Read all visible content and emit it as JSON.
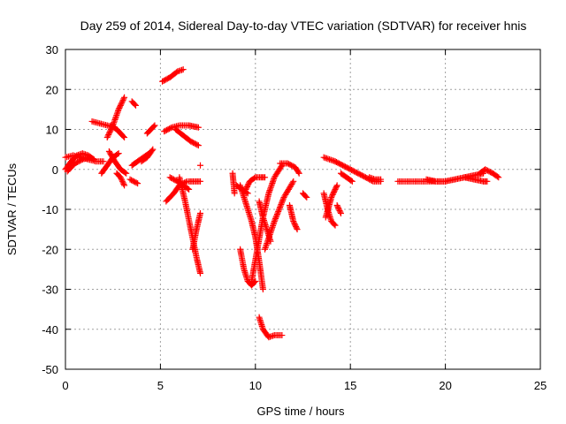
{
  "chart_data": {
    "type": "scatter",
    "title": "Day 259 of 2014, Sidereal Day-to-day VTEC variation (SDTVAR) for receiver hnis",
    "xlabel": "GPS time / hours",
    "ylabel": "SDTVAR / TECUs",
    "xlim": [
      0,
      25
    ],
    "ylim": [
      -50,
      30
    ],
    "xticks": [
      0,
      5,
      10,
      15,
      20,
      25
    ],
    "yticks": [
      -50,
      -40,
      -30,
      -20,
      -10,
      0,
      10,
      20,
      30
    ],
    "grid": true,
    "marker": "+",
    "color": "#ff0000",
    "segments": [
      {
        "x": [
          0.0,
          0.3,
          0.6,
          0.9,
          1.2,
          1.5
        ],
        "y": [
          0,
          2,
          3.5,
          4,
          3.5,
          2.5
        ]
      },
      {
        "x": [
          0.0,
          0.4,
          0.8,
          1.2,
          1.6,
          2.0
        ],
        "y": [
          3,
          3.5,
          3,
          2.5,
          2,
          2
        ]
      },
      {
        "x": [
          0.1,
          0.5,
          0.9,
          1.3
        ],
        "y": [
          -0.5,
          1.5,
          2.5,
          3
        ]
      },
      {
        "x": [
          1.4,
          1.8,
          2.2,
          2.6
        ],
        "y": [
          12,
          11.5,
          11,
          10.5
        ]
      },
      {
        "x": [
          2.2,
          2.5,
          2.8,
          3.1
        ],
        "y": [
          8,
          11,
          15,
          18
        ]
      },
      {
        "x": [
          2.3,
          2.6,
          2.9,
          3.2
        ],
        "y": [
          4.5,
          2,
          0,
          -1
        ]
      },
      {
        "x": [
          1.9,
          2.2,
          2.5,
          2.8
        ],
        "y": [
          -1,
          1,
          3,
          4
        ]
      },
      {
        "x": [
          2.4,
          2.7,
          2.9,
          3.1
        ],
        "y": [
          11,
          10,
          9,
          8
        ]
      },
      {
        "x": [
          2.7,
          2.9,
          3.0,
          3.1
        ],
        "y": [
          -1,
          -2,
          -3,
          -4
        ]
      },
      {
        "x": [
          3.5,
          3.6,
          3.7
        ],
        "y": [
          17,
          16.5,
          16
        ]
      },
      {
        "x": [
          3.5,
          3.8,
          4.1,
          4.4
        ],
        "y": [
          1,
          2,
          3,
          4
        ]
      },
      {
        "x": [
          3.4,
          3.6,
          3.8
        ],
        "y": [
          -2.5,
          -3,
          -3.5
        ]
      },
      {
        "x": [
          4.0,
          4.3,
          4.6
        ],
        "y": [
          2,
          3,
          5
        ]
      },
      {
        "x": [
          4.3,
          4.5,
          4.7
        ],
        "y": [
          9,
          10,
          11
        ]
      },
      {
        "x": [
          5.1,
          5.5,
          5.9,
          6.2
        ],
        "y": [
          22,
          23,
          24.5,
          25
        ]
      },
      {
        "x": [
          5.2,
          5.6,
          6.0,
          6.5,
          7.0
        ],
        "y": [
          9.5,
          10.5,
          11,
          11,
          10.5
        ]
      },
      {
        "x": [
          5.8,
          6.2,
          6.6,
          7.0
        ],
        "y": [
          10,
          8.5,
          7,
          6
        ]
      },
      {
        "x": [
          5.3,
          5.7,
          6.0,
          6.4
        ],
        "y": [
          -8,
          -6,
          -4,
          -3
        ]
      },
      {
        "x": [
          5.5,
          5.9,
          6.2,
          6.5
        ],
        "y": [
          -2,
          -3,
          -4,
          -5
        ]
      },
      {
        "x": [
          6.0,
          6.3,
          6.6,
          6.9,
          7.1
        ],
        "y": [
          -2,
          -8,
          -15,
          -22,
          -26
        ]
      },
      {
        "x": [
          6.5,
          6.8,
          7.1
        ],
        "y": [
          -3,
          -3,
          -3
        ]
      },
      {
        "x": [
          6.7,
          6.9,
          7.1
        ],
        "y": [
          -20,
          -15,
          -11
        ]
      },
      {
        "x": [
          7.1
        ],
        "y": [
          1
        ]
      },
      {
        "x": [
          8.8,
          8.9
        ],
        "y": [
          -1,
          -6
        ]
      },
      {
        "x": [
          9.0,
          9.3,
          9.6
        ],
        "y": [
          -4,
          -5,
          -6
        ]
      },
      {
        "x": [
          9.2,
          9.4,
          9.6,
          9.8,
          10.0
        ],
        "y": [
          -20,
          -25,
          -28,
          -29,
          -28
        ]
      },
      {
        "x": [
          9.2,
          9.4,
          9.6,
          9.8,
          10.0,
          10.2,
          10.4
        ],
        "y": [
          -4,
          -7,
          -10,
          -13,
          -17,
          -23,
          -30
        ]
      },
      {
        "x": [
          9.5,
          9.7,
          10.0,
          10.3,
          10.5
        ],
        "y": [
          -5,
          -3,
          -2,
          -2,
          -2
        ]
      },
      {
        "x": [
          9.8,
          10.1,
          10.4,
          10.7,
          11.0,
          11.4
        ],
        "y": [
          -28,
          -20,
          -12,
          -6,
          -2,
          1
        ]
      },
      {
        "x": [
          10.2,
          10.4,
          10.6,
          10.8
        ],
        "y": [
          -8,
          -12,
          -15,
          -18
        ]
      },
      {
        "x": [
          10.2,
          10.4,
          10.7,
          11.0,
          11.4
        ],
        "y": [
          -37,
          -40,
          -42,
          -41.5,
          -41.5
        ]
      },
      {
        "x": [
          10.5,
          11.0,
          11.5,
          12.0
        ],
        "y": [
          -20,
          -13,
          -7,
          -3
        ]
      },
      {
        "x": [
          11.3,
          11.7,
          12.1,
          12.3
        ],
        "y": [
          1.5,
          1.5,
          0.5,
          -1
        ]
      },
      {
        "x": [
          11.8,
          12.0,
          12.2
        ],
        "y": [
          -9,
          -13,
          -15
        ]
      },
      {
        "x": [
          12.5,
          12.7
        ],
        "y": [
          -6,
          -7
        ]
      },
      {
        "x": [
          13.6,
          13.8,
          14.0,
          14.2
        ],
        "y": [
          -6,
          -10,
          -13,
          -14
        ]
      },
      {
        "x": [
          13.7,
          14.0,
          14.3
        ],
        "y": [
          -12,
          -7,
          -4
        ]
      },
      {
        "x": [
          13.6,
          13.9,
          14.2
        ],
        "y": [
          3,
          2.5,
          2
        ]
      },
      {
        "x": [
          14.2,
          14.6,
          15.0,
          15.4,
          15.8,
          16.2,
          16.6
        ],
        "y": [
          2,
          1,
          0,
          -1,
          -2,
          -3,
          -3
        ]
      },
      {
        "x": [
          14.3,
          14.5
        ],
        "y": [
          -9,
          -11
        ]
      },
      {
        "x": [
          14.5,
          14.8,
          15.1
        ],
        "y": [
          -1,
          -2,
          -3
        ]
      },
      {
        "x": [
          16.0,
          16.3,
          16.6
        ],
        "y": [
          -2,
          -2.5,
          -2.5
        ]
      },
      {
        "x": [
          17.5,
          18.0,
          18.5,
          19.0,
          19.5,
          20.0
        ],
        "y": [
          -3,
          -3,
          -3,
          -3,
          -3,
          -3
        ]
      },
      {
        "x": [
          19.0,
          19.5,
          20.0,
          20.5,
          21.0,
          21.5,
          22.0
        ],
        "y": [
          -2.5,
          -3,
          -3,
          -2.5,
          -2,
          -1.5,
          -1
        ]
      },
      {
        "x": [
          21.0,
          21.5,
          22.0,
          22.2
        ],
        "y": [
          -2,
          -2.5,
          -3,
          -3
        ]
      },
      {
        "x": [
          21.8,
          22.1,
          22.5,
          22.8
        ],
        "y": [
          -1,
          0,
          -1,
          -2
        ]
      }
    ]
  }
}
